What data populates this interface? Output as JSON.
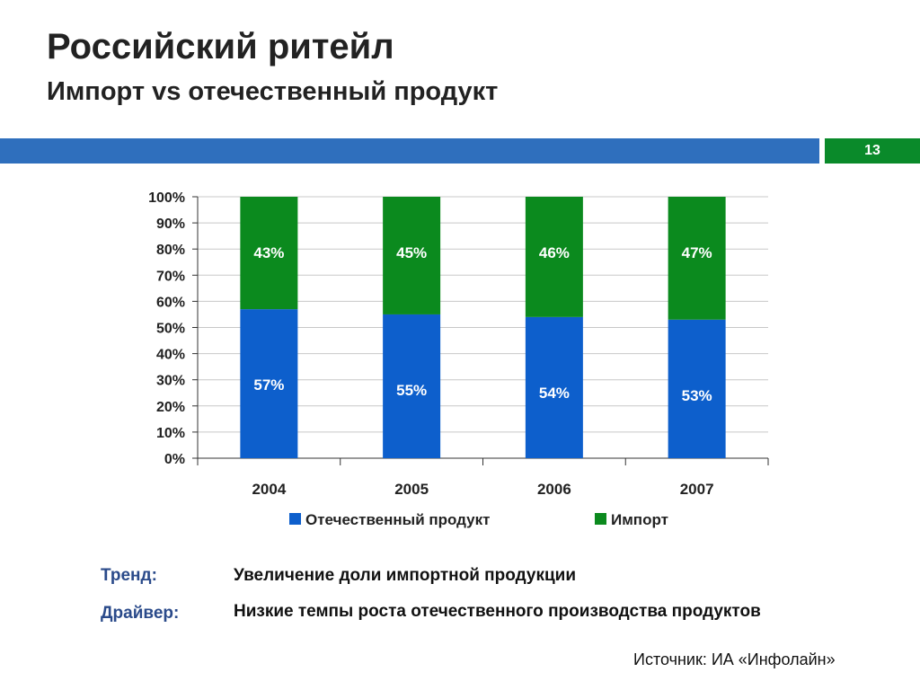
{
  "header": {
    "title": "Российский ритейл",
    "subtitle": "Импорт vs отечественный продукт",
    "page_number": "13"
  },
  "colors": {
    "band_blue": "#2f6fbd",
    "band_green": "#0a8a2a",
    "domestic": "#0d5fcc",
    "import": "#0b8a1e",
    "note_label": "#2a4a8a"
  },
  "chart_data": {
    "type": "bar",
    "stacked": true,
    "categories": [
      "2004",
      "2005",
      "2006",
      "2007"
    ],
    "series": [
      {
        "name": "Отечественный продукт",
        "values": [
          57,
          55,
          54,
          53
        ],
        "labels": [
          "57%",
          "55%",
          "54%",
          "53%"
        ]
      },
      {
        "name": "Импорт",
        "values": [
          43,
          45,
          46,
          47
        ],
        "labels": [
          "43%",
          "45%",
          "46%",
          "47%"
        ]
      }
    ],
    "yticks": [
      "0%",
      "10%",
      "20%",
      "30%",
      "40%",
      "50%",
      "60%",
      "70%",
      "80%",
      "90%",
      "100%"
    ],
    "ylim": [
      0,
      100
    ],
    "grid": true,
    "legend": "bottom"
  },
  "notes": [
    {
      "label": "Тренд:",
      "text": "Увеличение доли импортной продукции"
    },
    {
      "label": "Драйвер:",
      "text": "Низкие темпы роста отечественного производства продуктов"
    }
  ],
  "source": "Источник: ИА «Инфолайн»"
}
